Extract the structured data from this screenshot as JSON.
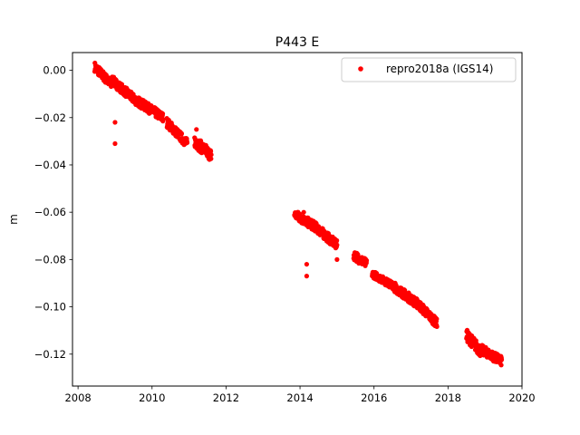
{
  "chart_data": {
    "type": "scatter",
    "title": "P443 E",
    "xlabel": "",
    "ylabel": "m",
    "xlim": [
      2007.85,
      2020.0
    ],
    "ylim": [
      -0.1335,
      0.0075
    ],
    "xticks": [
      2008,
      2010,
      2012,
      2014,
      2016,
      2018,
      2020
    ],
    "xtick_labels": [
      "2008",
      "2010",
      "2012",
      "2014",
      "2016",
      "2018",
      "2020"
    ],
    "yticks": [
      0.0,
      -0.02,
      -0.04,
      -0.06,
      -0.08,
      -0.1,
      -0.12
    ],
    "ytick_labels": [
      "0.00",
      "−0.02",
      "−0.04",
      "−0.06",
      "−0.08",
      "−0.10",
      "−0.12"
    ],
    "grid": false,
    "legend_position": "top-right",
    "series": [
      {
        "name": "repro2018a (IGS14)",
        "color": "#ff0000",
        "marker": "circle",
        "segments": [
          {
            "start": 2008.45,
            "end": 2008.9,
            "y_start": 0.0015,
            "y_end": -0.006,
            "spread": 0.004
          },
          {
            "start": 2008.9,
            "end": 2009.5,
            "y_start": -0.004,
            "y_end": -0.012,
            "spread": 0.004
          },
          {
            "start": 2009.5,
            "end": 2010.3,
            "y_start": -0.012,
            "y_end": -0.02,
            "spread": 0.004
          },
          {
            "start": 2010.4,
            "end": 2010.95,
            "y_start": -0.022,
            "y_end": -0.031,
            "spread": 0.004
          },
          {
            "start": 2011.15,
            "end": 2011.6,
            "y_start": -0.03,
            "y_end": -0.036,
            "spread": 0.005
          },
          {
            "start": 2013.85,
            "end": 2014.4,
            "y_start": -0.061,
            "y_end": -0.066,
            "spread": 0.004
          },
          {
            "start": 2014.4,
            "end": 2015.0,
            "y_start": -0.066,
            "y_end": -0.074,
            "spread": 0.004
          },
          {
            "start": 2015.45,
            "end": 2015.8,
            "y_start": -0.078,
            "y_end": -0.082,
            "spread": 0.004
          },
          {
            "start": 2015.95,
            "end": 2016.5,
            "y_start": -0.086,
            "y_end": -0.091,
            "spread": 0.003
          },
          {
            "start": 2016.5,
            "end": 2017.2,
            "y_start": -0.091,
            "y_end": -0.099,
            "spread": 0.004
          },
          {
            "start": 2017.2,
            "end": 2017.7,
            "y_start": -0.099,
            "y_end": -0.107,
            "spread": 0.004
          },
          {
            "start": 2018.5,
            "end": 2018.9,
            "y_start": -0.112,
            "y_end": -0.119,
            "spread": 0.005
          },
          {
            "start": 2018.9,
            "end": 2019.45,
            "y_start": -0.118,
            "y_end": -0.123,
            "spread": 0.004
          }
        ],
        "points": [
          [
            2009.0,
            -0.022
          ],
          [
            2009.0,
            -0.031
          ],
          [
            2014.18,
            -0.082
          ],
          [
            2014.18,
            -0.087
          ],
          [
            2011.2,
            -0.025
          ],
          [
            2015.0,
            -0.08
          ],
          [
            2013.95,
            -0.06
          ],
          [
            2014.1,
            -0.06
          ]
        ]
      }
    ]
  }
}
